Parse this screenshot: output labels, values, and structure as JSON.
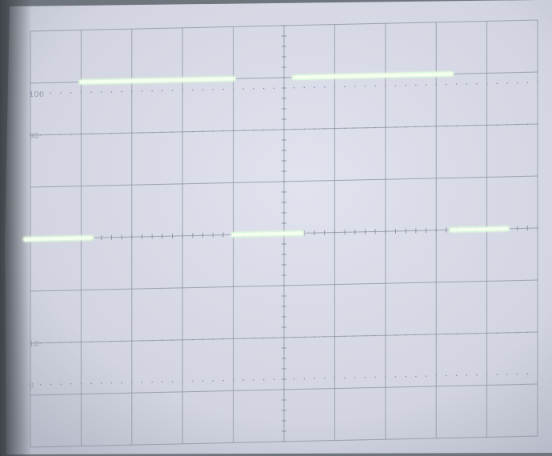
{
  "screen": {
    "phosphor_color": "#f4fff0",
    "trace_glow_color": "#d8ffd0",
    "graticule_color": "#8e93a3",
    "background_color": "#d6d8e4",
    "bezel_color": "#6f757c"
  },
  "graticule": {
    "divisions_x": 10,
    "divisions_y": 8,
    "percent_marks": [
      "100",
      "90",
      "10",
      "0"
    ]
  },
  "signal": {
    "type": "square-wave",
    "high_level_div": 7.0,
    "low_level_div": 4.0,
    "segments": [
      {
        "start_div": -0.1,
        "end_div": 1.2,
        "level": "low"
      },
      {
        "start_div": 1.0,
        "end_div": 4.0,
        "level": "high"
      },
      {
        "start_div": 4.0,
        "end_div": 5.35,
        "level": "low"
      },
      {
        "start_div": 5.2,
        "end_div": 8.3,
        "level": "high"
      },
      {
        "start_div": 8.3,
        "end_div": 9.4,
        "level": "low"
      }
    ]
  }
}
